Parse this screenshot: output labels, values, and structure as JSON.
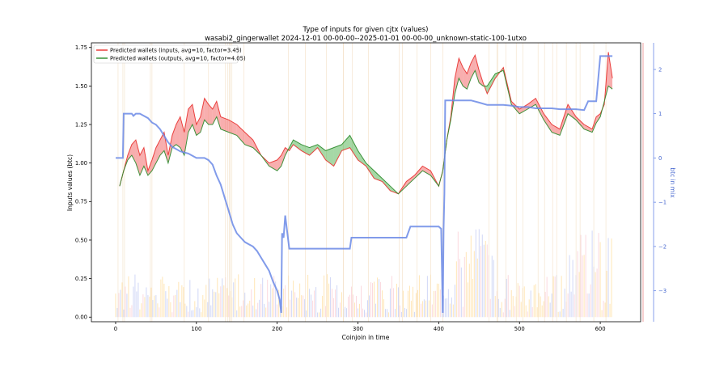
{
  "chart_data": {
    "type": "line",
    "title": "Type of inputs for given cjtx (values)",
    "subtitle": "wasabi2_gingerwallet 2024-12-01 00-00-00--2025-01-01 00-00-00_unknown-static-100-1utxo",
    "xlabel": "Coinjoin in time",
    "ylabel": "Inputs values (btc)",
    "y2label": "btc in mix",
    "x_ticks": [
      "0",
      "100",
      "200",
      "300",
      "400",
      "500",
      "600"
    ],
    "y_ticks": [
      "0.00",
      "0.25",
      "0.50",
      "0.75",
      "1.00",
      "1.25",
      "1.50",
      "1.75"
    ],
    "y2_ticks": [
      "−3",
      "−2",
      "−1",
      "0",
      "1",
      "2"
    ],
    "xlim": [
      -30,
      650
    ],
    "ylim": [
      -0.03,
      1.78
    ],
    "y2lim": [
      -3.7,
      2.6
    ],
    "legend_position": "upper-left",
    "grid": false,
    "series": [
      {
        "name": "Predicted wallets (inputs, avg=10, factor=3.45)",
        "color": "#e8302e",
        "x": [
          5,
          10,
          15,
          20,
          25,
          30,
          35,
          40,
          45,
          50,
          55,
          60,
          65,
          70,
          75,
          80,
          85,
          90,
          95,
          100,
          105,
          110,
          115,
          120,
          125,
          130,
          140,
          150,
          160,
          170,
          180,
          190,
          200,
          205,
          210,
          215,
          220,
          230,
          240,
          250,
          260,
          270,
          280,
          290,
          300,
          310,
          320,
          330,
          340,
          350,
          360,
          370,
          380,
          390,
          400,
          405,
          410,
          415,
          420,
          425,
          430,
          435,
          440,
          445,
          450,
          455,
          460,
          470,
          480,
          490,
          500,
          510,
          520,
          530,
          540,
          550,
          560,
          570,
          580,
          590,
          595,
          600,
          605,
          610,
          615
        ],
        "y": [
          0.85,
          0.95,
          1.05,
          1.12,
          1.15,
          1.05,
          1.1,
          0.95,
          1.02,
          1.1,
          1.15,
          1.2,
          1.05,
          1.18,
          1.25,
          1.3,
          1.2,
          1.35,
          1.38,
          1.25,
          1.3,
          1.42,
          1.38,
          1.35,
          1.4,
          1.3,
          1.28,
          1.25,
          1.2,
          1.15,
          1.05,
          1.0,
          1.02,
          1.05,
          1.1,
          1.08,
          1.12,
          1.08,
          1.05,
          1.1,
          1.02,
          0.98,
          1.08,
          1.1,
          1.02,
          0.98,
          0.9,
          0.88,
          0.82,
          0.8,
          0.88,
          0.92,
          0.98,
          0.95,
          0.85,
          0.95,
          1.15,
          1.3,
          1.55,
          1.68,
          1.62,
          1.58,
          1.65,
          1.7,
          1.6,
          1.52,
          1.45,
          1.55,
          1.62,
          1.4,
          1.35,
          1.38,
          1.42,
          1.32,
          1.25,
          1.22,
          1.38,
          1.3,
          1.25,
          1.22,
          1.3,
          1.32,
          1.38,
          1.72,
          1.55
        ],
        "axis": "left"
      },
      {
        "name": "Predicted wallets (outputs, avg=10, factor=4.05)",
        "color": "#2a8a2a",
        "x": [
          5,
          10,
          15,
          20,
          25,
          30,
          35,
          40,
          45,
          50,
          55,
          60,
          65,
          70,
          75,
          80,
          85,
          90,
          95,
          100,
          105,
          110,
          115,
          120,
          125,
          130,
          140,
          150,
          160,
          170,
          180,
          190,
          200,
          205,
          210,
          215,
          220,
          230,
          240,
          250,
          260,
          270,
          280,
          290,
          300,
          310,
          320,
          330,
          340,
          350,
          360,
          370,
          380,
          390,
          400,
          405,
          410,
          415,
          420,
          425,
          430,
          435,
          440,
          445,
          450,
          455,
          460,
          470,
          480,
          490,
          500,
          510,
          520,
          530,
          540,
          550,
          560,
          570,
          580,
          590,
          595,
          600,
          605,
          610,
          615
        ],
        "y": [
          0.85,
          0.95,
          1.02,
          1.05,
          1.0,
          0.92,
          0.98,
          0.92,
          0.95,
          1.0,
          1.05,
          1.08,
          1.0,
          1.1,
          1.12,
          1.1,
          1.05,
          1.2,
          1.25,
          1.18,
          1.2,
          1.28,
          1.25,
          1.25,
          1.3,
          1.22,
          1.2,
          1.18,
          1.12,
          1.1,
          1.05,
          0.98,
          0.95,
          0.98,
          1.05,
          1.1,
          1.15,
          1.12,
          1.1,
          1.12,
          1.08,
          1.1,
          1.12,
          1.18,
          1.08,
          1.0,
          0.95,
          0.9,
          0.85,
          0.8,
          0.85,
          0.9,
          0.95,
          0.92,
          0.85,
          0.95,
          1.15,
          1.28,
          1.45,
          1.55,
          1.5,
          1.48,
          1.55,
          1.6,
          1.52,
          1.5,
          1.5,
          1.58,
          1.6,
          1.38,
          1.32,
          1.35,
          1.38,
          1.28,
          1.2,
          1.18,
          1.32,
          1.28,
          1.22,
          1.2,
          1.26,
          1.3,
          1.4,
          1.5,
          1.48
        ],
        "axis": "left"
      },
      {
        "name": "",
        "color": "#6b8ae6",
        "x": [
          0,
          9,
          10,
          20,
          22,
          25,
          30,
          40,
          45,
          50,
          55,
          60,
          65,
          70,
          75,
          80,
          90,
          95,
          100,
          110,
          115,
          120,
          125,
          130,
          135,
          140,
          145,
          150,
          155,
          160,
          165,
          170,
          175,
          180,
          185,
          190,
          195,
          200,
          203,
          205,
          206,
          208,
          210,
          212,
          215,
          220,
          230,
          240,
          250,
          260,
          270,
          280,
          285,
          290,
          292,
          300,
          310,
          320,
          330,
          340,
          350,
          360,
          365,
          370,
          375,
          380,
          390,
          400,
          403,
          405,
          406,
          407,
          408,
          410,
          420,
          430,
          440,
          450,
          460,
          470,
          480,
          490,
          500,
          510,
          520,
          530,
          540,
          550,
          560,
          570,
          580,
          585,
          590,
          592,
          595,
          600,
          605,
          615
        ],
        "y": [
          0,
          0,
          1.0,
          1.0,
          0.95,
          1.0,
          1.0,
          0.9,
          0.8,
          0.75,
          0.65,
          0.5,
          0.35,
          0.25,
          0.2,
          0.15,
          0.1,
          0.05,
          0.0,
          0,
          -0.05,
          -0.15,
          -0.4,
          -0.6,
          -0.9,
          -1.2,
          -1.5,
          -1.7,
          -1.8,
          -1.9,
          -1.95,
          -2.0,
          -2.1,
          -2.25,
          -2.4,
          -2.55,
          -2.8,
          -3.0,
          -3.2,
          -3.5,
          -1.7,
          -1.8,
          -1.3,
          -1.6,
          -2.05,
          -2.05,
          -2.05,
          -2.05,
          -2.05,
          -2.05,
          -2.05,
          -2.05,
          -2.05,
          -2.05,
          -1.8,
          -1.8,
          -1.8,
          -1.8,
          -1.8,
          -1.8,
          -1.8,
          -1.8,
          -1.55,
          -1.55,
          -1.55,
          -1.55,
          -1.55,
          -1.55,
          -1.6,
          -3.5,
          -1.6,
          -0.8,
          1.3,
          1.3,
          1.3,
          1.3,
          1.3,
          1.25,
          1.2,
          1.2,
          1.2,
          1.18,
          1.15,
          1.15,
          1.12,
          1.12,
          1.12,
          1.1,
          1.1,
          1.1,
          1.08,
          1.28,
          1.28,
          1.28,
          1.28,
          2.3,
          2.3,
          2.3
        ],
        "axis": "right"
      }
    ]
  }
}
